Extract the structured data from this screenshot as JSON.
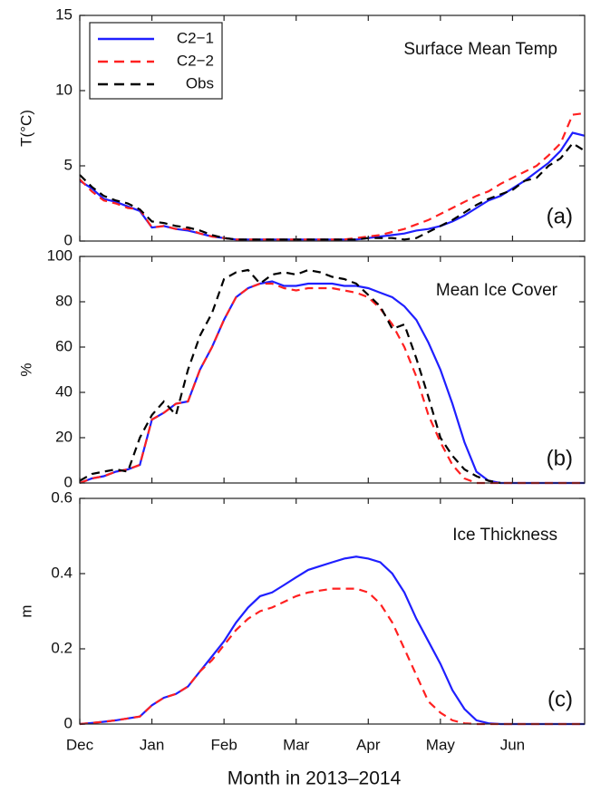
{
  "chart_data": [
    {
      "type": "line",
      "title": "Surface Mean Temp",
      "panel_label": "(a)",
      "ylabel": "T(°C)",
      "ylim": [
        0,
        15
      ],
      "yticks": [
        0,
        5,
        10,
        15
      ],
      "legend": "upper left",
      "series": [
        {
          "name": "C2−1",
          "color": "#1f1fff",
          "dashed": false,
          "values": [
            4.0,
            3.5,
            2.8,
            2.6,
            2.3,
            2.0,
            0.9,
            1.0,
            0.8,
            0.7,
            0.5,
            0.3,
            0.2,
            0.1,
            0.1,
            0.1,
            0.1,
            0.1,
            0.1,
            0.1,
            0.1,
            0.1,
            0.1,
            0.1,
            0.2,
            0.3,
            0.4,
            0.5,
            0.7,
            0.8,
            1.0,
            1.3,
            1.7,
            2.2,
            2.7,
            3.0,
            3.5,
            4.0,
            4.6,
            5.2,
            6.0,
            7.2,
            7.0
          ]
        },
        {
          "name": "C2−2",
          "color": "#ff2020",
          "dashed": true,
          "values": [
            4.1,
            3.3,
            2.7,
            2.5,
            2.2,
            2.1,
            0.9,
            1.0,
            0.8,
            0.8,
            0.5,
            0.3,
            0.2,
            0.1,
            0.1,
            0.1,
            0.1,
            0.1,
            0.1,
            0.1,
            0.1,
            0.1,
            0.1,
            0.2,
            0.3,
            0.4,
            0.6,
            0.8,
            1.1,
            1.4,
            1.8,
            2.2,
            2.6,
            3.0,
            3.3,
            3.8,
            4.2,
            4.6,
            5.0,
            5.7,
            6.5,
            8.4,
            8.5
          ]
        },
        {
          "name": "Obs",
          "color": "#000000",
          "dashed": true,
          "values": [
            4.4,
            3.6,
            3.0,
            2.7,
            2.5,
            2.1,
            1.3,
            1.2,
            1.0,
            0.9,
            0.7,
            0.4,
            0.2,
            0.1,
            0.1,
            0.1,
            0.1,
            0.1,
            0.1,
            0.1,
            0.1,
            0.1,
            0.1,
            0.1,
            0.2,
            0.2,
            0.2,
            0.1,
            0.2,
            0.6,
            1.0,
            1.4,
            1.9,
            2.4,
            2.8,
            3.1,
            3.4,
            4.0,
            4.2,
            5.0,
            5.5,
            6.5,
            6.0
          ]
        }
      ]
    },
    {
      "type": "line",
      "title": "Mean Ice Cover",
      "panel_label": "(b)",
      "ylabel": "%",
      "ylim": [
        0,
        100
      ],
      "yticks": [
        0,
        20,
        40,
        60,
        80,
        100
      ],
      "series": [
        {
          "color": "#1f1fff",
          "dashed": false,
          "values": [
            0,
            2,
            3,
            5,
            6,
            8,
            28,
            31,
            35,
            36,
            50,
            60,
            72,
            82,
            86,
            88,
            89,
            87,
            87,
            88,
            88,
            88,
            87,
            87,
            86,
            84,
            82,
            78,
            72,
            62,
            50,
            35,
            18,
            5,
            1,
            0,
            0,
            0,
            0,
            0,
            0,
            0,
            0
          ]
        },
        {
          "color": "#ff2020",
          "dashed": true,
          "values": [
            0,
            2,
            3,
            5,
            6,
            8,
            28,
            31,
            35,
            36,
            50,
            60,
            72,
            82,
            86,
            88,
            88,
            86,
            85,
            86,
            86,
            86,
            85,
            84,
            82,
            77,
            70,
            60,
            47,
            30,
            18,
            8,
            2,
            0,
            0,
            0,
            0,
            0,
            0,
            0,
            0,
            0,
            0
          ]
        },
        {
          "color": "#000000",
          "dashed": true,
          "values": [
            1,
            4,
            5,
            6,
            5,
            20,
            30,
            36,
            30,
            50,
            65,
            75,
            90,
            93,
            94,
            88,
            92,
            93,
            92,
            94,
            93,
            91,
            90,
            88,
            83,
            78,
            68,
            70,
            55,
            38,
            20,
            12,
            6,
            3,
            1,
            0,
            null,
            null,
            null,
            null,
            null,
            null,
            null
          ]
        }
      ]
    },
    {
      "type": "line",
      "title": "Ice Thickness",
      "panel_label": "(c)",
      "ylabel": "m",
      "ylim": [
        0,
        0.6
      ],
      "yticks": [
        0,
        0.2,
        0.4,
        0.6
      ],
      "xlabel": "Month in 2013–2014",
      "categories": [
        "Dec",
        null,
        null,
        null,
        null,
        null,
        "Jan",
        null,
        null,
        null,
        null,
        null,
        "Feb",
        null,
        null,
        null,
        null,
        null,
        "Mar",
        null,
        null,
        null,
        null,
        null,
        "Apr",
        null,
        null,
        null,
        null,
        null,
        "May",
        null,
        null,
        null,
        null,
        null,
        "Jun",
        null,
        null,
        null,
        null,
        null,
        null
      ],
      "series": [
        {
          "color": "#1f1fff",
          "dashed": false,
          "values": [
            0,
            0.003,
            0.006,
            0.01,
            0.015,
            0.02,
            0.05,
            0.07,
            0.08,
            0.1,
            0.14,
            0.18,
            0.22,
            0.27,
            0.31,
            0.34,
            0.35,
            0.37,
            0.39,
            0.41,
            0.42,
            0.43,
            0.44,
            0.445,
            0.44,
            0.43,
            0.4,
            0.35,
            0.28,
            0.22,
            0.16,
            0.09,
            0.04,
            0.01,
            0.002,
            0,
            0,
            0,
            0,
            0,
            0,
            0,
            0
          ]
        },
        {
          "color": "#ff2020",
          "dashed": true,
          "values": [
            0,
            0.003,
            0.006,
            0.01,
            0.015,
            0.02,
            0.05,
            0.07,
            0.08,
            0.1,
            0.14,
            0.17,
            0.21,
            0.25,
            0.28,
            0.3,
            0.31,
            0.325,
            0.34,
            0.35,
            0.355,
            0.36,
            0.36,
            0.36,
            0.35,
            0.32,
            0.27,
            0.2,
            0.13,
            0.06,
            0.03,
            0.01,
            0.002,
            0,
            0,
            0,
            0,
            0,
            0,
            0,
            0,
            0,
            0
          ]
        }
      ]
    }
  ]
}
